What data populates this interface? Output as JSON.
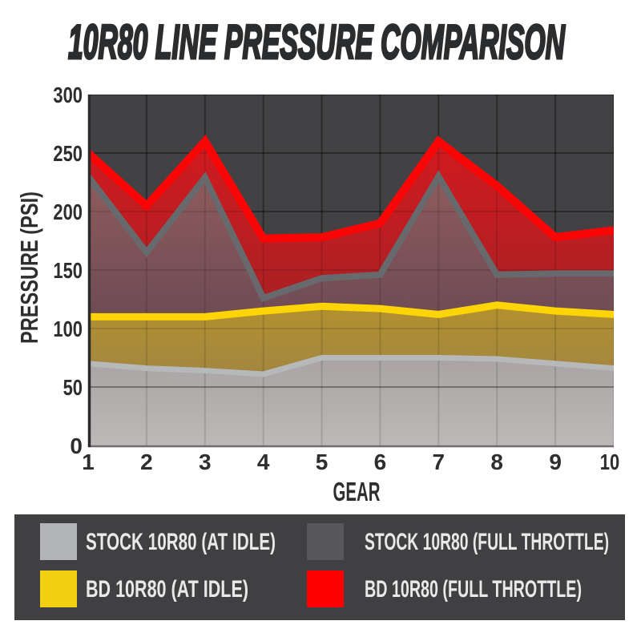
{
  "title": "10R80 LINE PRESSURE COMPARISON",
  "colors": {
    "page_background": "#ffffff",
    "title_text": "#2b2c2e",
    "plot_background": "#424244",
    "axis_left": "#2a2a2c",
    "axis_bottom": "#6f6d6d",
    "tick_label": "#2d2e30",
    "legend_background": "#403f41",
    "legend_text": "#e8e9e9"
  },
  "chart_data": {
    "type": "area",
    "title": "10R80 LINE PRESSURE COMPARISON",
    "xlabel": "GEAR",
    "ylabel": "PRESSURE (PSI)",
    "x": [
      1,
      2,
      3,
      4,
      5,
      6,
      7,
      8,
      9,
      10
    ],
    "xlim": [
      1,
      10
    ],
    "ylim": [
      0,
      300
    ],
    "yticks": [
      0,
      50,
      100,
      150,
      200,
      250,
      300
    ],
    "grid": true,
    "legend_position": "bottom",
    "series": [
      {
        "name": "BD 10R80 (FULL THROTTLE)",
        "values": [
          250,
          205,
          260,
          177,
          178,
          190,
          260,
          222,
          178,
          184
        ],
        "line_color": "#f90505",
        "line_width": 10,
        "band_gradient": {
          "color_top": "#d41a1f",
          "psi_top": 271,
          "color_bottom": "#a62124",
          "psi_bottom": 107
        }
      },
      {
        "name": "STOCK 10R80 (FULL THROTTLE)",
        "values": [
          230,
          165,
          229,
          126,
          143,
          146,
          230,
          146,
          147,
          147
        ],
        "line_color": "#67696d",
        "line_width": 8,
        "band_gradient": {
          "color_top": "#8e5b5c",
          "psi_top": 230,
          "color_bottom": "#614551",
          "psi_bottom": 59
        }
      },
      {
        "name": "BD 10R80 (AT IDLE)",
        "values": [
          110,
          110,
          110,
          115,
          119,
          117,
          112,
          120,
          115,
          112
        ],
        "line_color": "#fdd405",
        "line_width": 9,
        "band_gradient": {
          "color_top": "#b5922c",
          "psi_top": 127,
          "color_bottom": "#917c54",
          "psi_bottom": 0
        }
      },
      {
        "name": "STOCK 10R80 (AT IDLE)",
        "values": [
          70,
          66,
          64,
          61,
          75,
          75,
          75,
          74,
          70,
          66
        ],
        "line_color": "#b7b8ba",
        "line_width": 7,
        "band_gradient": {
          "color_top": "#a8a2a2",
          "psi_top": 79,
          "color_bottom": "#bdb9b9",
          "psi_bottom": 0
        }
      }
    ]
  },
  "axes": {
    "y_label": "PRESSURE (PSI)",
    "x_label": "GEAR",
    "y_ticks": [
      "0",
      "50",
      "100",
      "150",
      "200",
      "250",
      "300"
    ],
    "x_ticks": [
      "1",
      "2",
      "3",
      "4",
      "5",
      "6",
      "7",
      "8",
      "9",
      "10"
    ]
  },
  "legend": {
    "items": [
      {
        "label": "STOCK 10R80 (AT IDLE)",
        "swatch_color": "#b2b4b6"
      },
      {
        "label": "STOCK 10R80 (FULL THROTTLE)",
        "swatch_color": "#58585a"
      },
      {
        "label": "BD 10R80 (AT IDLE)",
        "swatch_color": "#f3cf11"
      },
      {
        "label": "BD 10R80 (FULL THROTTLE)",
        "swatch_color": "#fe0000"
      }
    ]
  }
}
